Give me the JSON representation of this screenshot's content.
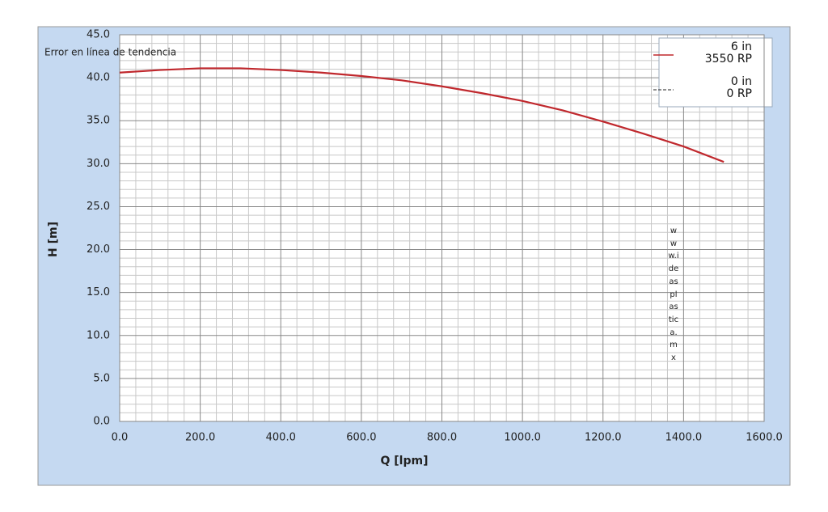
{
  "chart_data": {
    "type": "line",
    "annotation": "Error en línea de tendencia",
    "watermark": "www.ideasplastica.mx",
    "x_label": "Q [lpm]",
    "y_label": "H [m]",
    "series": [
      {
        "name": "6 in\n3550 RP",
        "color": "#c0282d",
        "line_style": "solid",
        "x": [
          0,
          100,
          200,
          300,
          400,
          500,
          600,
          700,
          800,
          900,
          1000,
          1100,
          1200,
          1300,
          1400,
          1500
        ],
        "values": [
          40.6,
          40.9,
          41.1,
          41.1,
          40.9,
          40.6,
          40.2,
          39.7,
          39.0,
          38.2,
          37.3,
          36.2,
          34.9,
          33.5,
          32.0,
          30.2
        ]
      },
      {
        "name": "0 in\n0 RP",
        "color": "#222222",
        "line_style": "dashed",
        "x": [],
        "values": []
      }
    ],
    "xlim": [
      0,
      1600
    ],
    "xticks": [
      {
        "value": 0,
        "label": "0.0"
      },
      {
        "value": 200,
        "label": "200.0"
      },
      {
        "value": 400,
        "label": "400.0"
      },
      {
        "value": 600,
        "label": "600.0"
      },
      {
        "value": 800,
        "label": "800.0"
      },
      {
        "value": 1000,
        "label": "1000.0"
      },
      {
        "value": 1200,
        "label": "1200.0"
      },
      {
        "value": 1400,
        "label": "1400.0"
      },
      {
        "value": 1600,
        "label": "1600.0"
      }
    ],
    "ylim": [
      0,
      45
    ],
    "yticks": [
      {
        "value": 0,
        "label": "0.0"
      },
      {
        "value": 5,
        "label": "5.0"
      },
      {
        "value": 10,
        "label": "10.0"
      },
      {
        "value": 15,
        "label": "15.0"
      },
      {
        "value": 20,
        "label": "20.0"
      },
      {
        "value": 25,
        "label": "25.0"
      },
      {
        "value": 30,
        "label": "30.0"
      },
      {
        "value": 35,
        "label": "35.0"
      },
      {
        "value": 40,
        "label": "40.0"
      },
      {
        "value": 45,
        "label": "45.0"
      }
    ],
    "grid": true,
    "legend": "top-right"
  }
}
